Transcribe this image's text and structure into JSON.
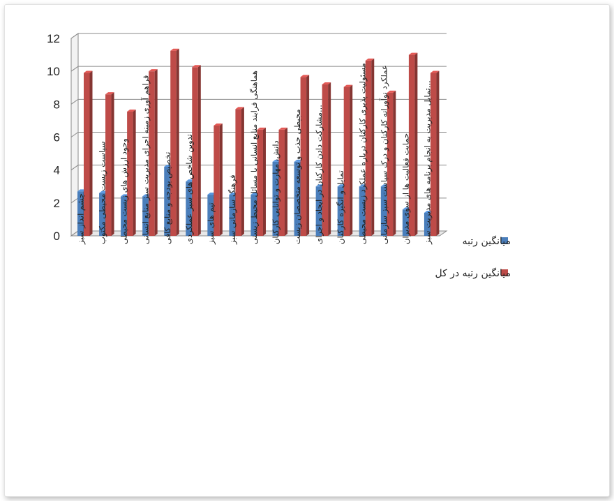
{
  "chart_data": {
    "type": "bar",
    "style": "3d-clustered-column",
    "ylim": [
      0,
      12
    ],
    "yticks": [
      0,
      2,
      4,
      6,
      8,
      10,
      12
    ],
    "grid": true,
    "legend_position": "right",
    "categories": [
      "چشم انداز سبز",
      "سیاست زیست محیطی مکتوب",
      "وجود ارزش های زیست محیطی",
      "فراهم آوری زمینه اجرای مدیریت سبز منابع انسانی",
      "تخصیص بودجه و منابع کافی",
      "تدوین شاخص های سبز عملکردی",
      "تیم های سبز",
      "فرهنگ سازمانی سبز",
      "هماهنگی فرایند منابع انسانی با مسائل محیط زیستی",
      "دانش، مهارت و توانایی کارکنان",
      "مجیطی جذب و توسعه متخصصان زیست",
      "...مشارکت دادن کارکنان در ایجاد و اجرای",
      "تمایل و انگیزه کارکنان",
      "مسئولیت پذیری کارکنان درباره عملکرد زیست محیطی",
      "عملکرد نوآورانه کارکنان و درک سیاست سبز سازمانی",
      "حمایت فعالیت ها از سوی مدیران",
      "...تمایل مدیریت به انجام برنامه های مدیریت سبز"
    ],
    "series": [
      {
        "name": "میانگین رتبه",
        "color": "#4a7ebb",
        "values": [
          2.7,
          2.6,
          2.4,
          2.4,
          4.2,
          3.3,
          2.5,
          2.5,
          2.5,
          4.5,
          4.5,
          3.0,
          3.0,
          3.0,
          3.0,
          1.6,
          1.4
        ]
      },
      {
        "name": "میانگین رتبه در کل",
        "color": "#be4b48",
        "values": [
          9.9,
          8.6,
          7.55,
          10.0,
          11.25,
          10.25,
          6.7,
          7.7,
          6.45,
          6.45,
          9.65,
          9.2,
          9.05,
          10.65,
          8.7,
          11.0,
          9.9
        ]
      }
    ]
  }
}
